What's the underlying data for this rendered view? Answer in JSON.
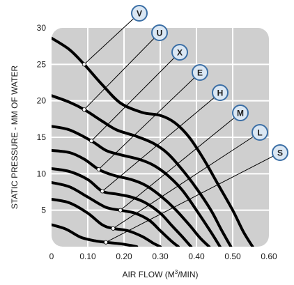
{
  "chart_data": {
    "type": "line",
    "xlabel_prefix": "AIR FLOW (M",
    "xlabel_sup": "3",
    "xlabel_suffix": "/MIN)",
    "ylabel": "STATIC PRESSURE - MM OF WATER",
    "xlim": [
      0,
      0.6
    ],
    "ylim": [
      0,
      30
    ],
    "x_ticks": [
      "0",
      "0.10",
      "0.20",
      "0.30",
      "0.40",
      "0.50",
      "0.60"
    ],
    "x_tick_values": [
      0,
      0.1,
      0.2,
      0.3,
      0.4,
      0.5,
      0.6
    ],
    "y_ticks": [
      "30",
      "25",
      "20",
      "15",
      "10",
      "5"
    ],
    "y_tick_values": [
      30,
      25,
      20,
      15,
      10,
      5
    ],
    "grid": true,
    "colors": {
      "plot_bg": "#cfcfcf",
      "grid": "#ffffff",
      "curve": "#000000",
      "leader": "#000000",
      "badge_fill": "#dbe7f3",
      "badge_stroke": "#3a6ea5"
    },
    "series": [
      {
        "name": "V",
        "marker": [
          0.09,
          25.0
        ],
        "x": [
          0.0,
          0.05,
          0.09,
          0.14,
          0.19,
          0.25,
          0.3,
          0.34,
          0.38,
          0.42,
          0.46,
          0.5,
          0.53,
          0.555
        ],
        "y": [
          28.6,
          27.0,
          25.0,
          22.2,
          19.7,
          18.4,
          18.0,
          17.0,
          15.0,
          12.0,
          8.5,
          5.0,
          2.0,
          0.0
        ]
      },
      {
        "name": "U",
        "marker": [
          0.09,
          18.8
        ],
        "x": [
          0.0,
          0.05,
          0.09,
          0.14,
          0.18,
          0.23,
          0.28,
          0.32,
          0.36,
          0.4,
          0.44,
          0.47,
          0.495
        ],
        "y": [
          20.7,
          19.8,
          18.8,
          17.2,
          16.0,
          15.2,
          14.2,
          12.8,
          10.6,
          8.0,
          5.0,
          2.2,
          0.0
        ]
      },
      {
        "name": "X",
        "marker": [
          0.11,
          14.5
        ],
        "x": [
          0.0,
          0.05,
          0.11,
          0.15,
          0.19,
          0.24,
          0.28,
          0.32,
          0.36,
          0.4,
          0.44,
          0.465
        ],
        "y": [
          16.5,
          16.0,
          14.5,
          13.2,
          12.6,
          12.0,
          11.2,
          9.8,
          7.8,
          5.0,
          2.0,
          0.0
        ]
      },
      {
        "name": "E",
        "marker": [
          0.13,
          10.6
        ],
        "x": [
          0.0,
          0.05,
          0.09,
          0.13,
          0.17,
          0.22,
          0.26,
          0.3,
          0.34,
          0.38,
          0.41,
          0.435
        ],
        "y": [
          13.2,
          12.9,
          12.0,
          10.6,
          9.8,
          9.2,
          8.4,
          7.0,
          5.2,
          3.0,
          1.2,
          0.0
        ]
      },
      {
        "name": "H",
        "marker": [
          0.14,
          7.6
        ],
        "x": [
          0.0,
          0.05,
          0.1,
          0.14,
          0.18,
          0.22,
          0.26,
          0.3,
          0.33,
          0.36,
          0.385
        ],
        "y": [
          10.7,
          10.3,
          9.2,
          7.6,
          7.2,
          6.8,
          6.0,
          4.6,
          3.0,
          1.4,
          0.0
        ]
      },
      {
        "name": "M",
        "marker": [
          0.19,
          5.0
        ],
        "x": [
          0.0,
          0.05,
          0.1,
          0.15,
          0.19,
          0.23,
          0.27,
          0.3,
          0.33,
          0.35
        ],
        "y": [
          8.8,
          8.2,
          6.8,
          5.4,
          5.0,
          4.6,
          3.6,
          2.2,
          0.8,
          0.0
        ]
      },
      {
        "name": "L",
        "marker": [
          0.17,
          2.5
        ],
        "x": [
          0.0,
          0.05,
          0.1,
          0.14,
          0.17,
          0.21,
          0.25,
          0.28,
          0.3
        ],
        "y": [
          6.5,
          6.0,
          4.6,
          3.0,
          2.5,
          2.2,
          1.4,
          0.5,
          0.0
        ]
      },
      {
        "name": "S",
        "marker": [
          0.15,
          0.6
        ],
        "x": [
          0.0,
          0.04,
          0.08,
          0.12,
          0.15,
          0.19,
          0.22,
          0.235
        ],
        "y": [
          3.0,
          2.4,
          1.3,
          0.8,
          0.6,
          0.4,
          0.15,
          0.0
        ]
      }
    ]
  }
}
